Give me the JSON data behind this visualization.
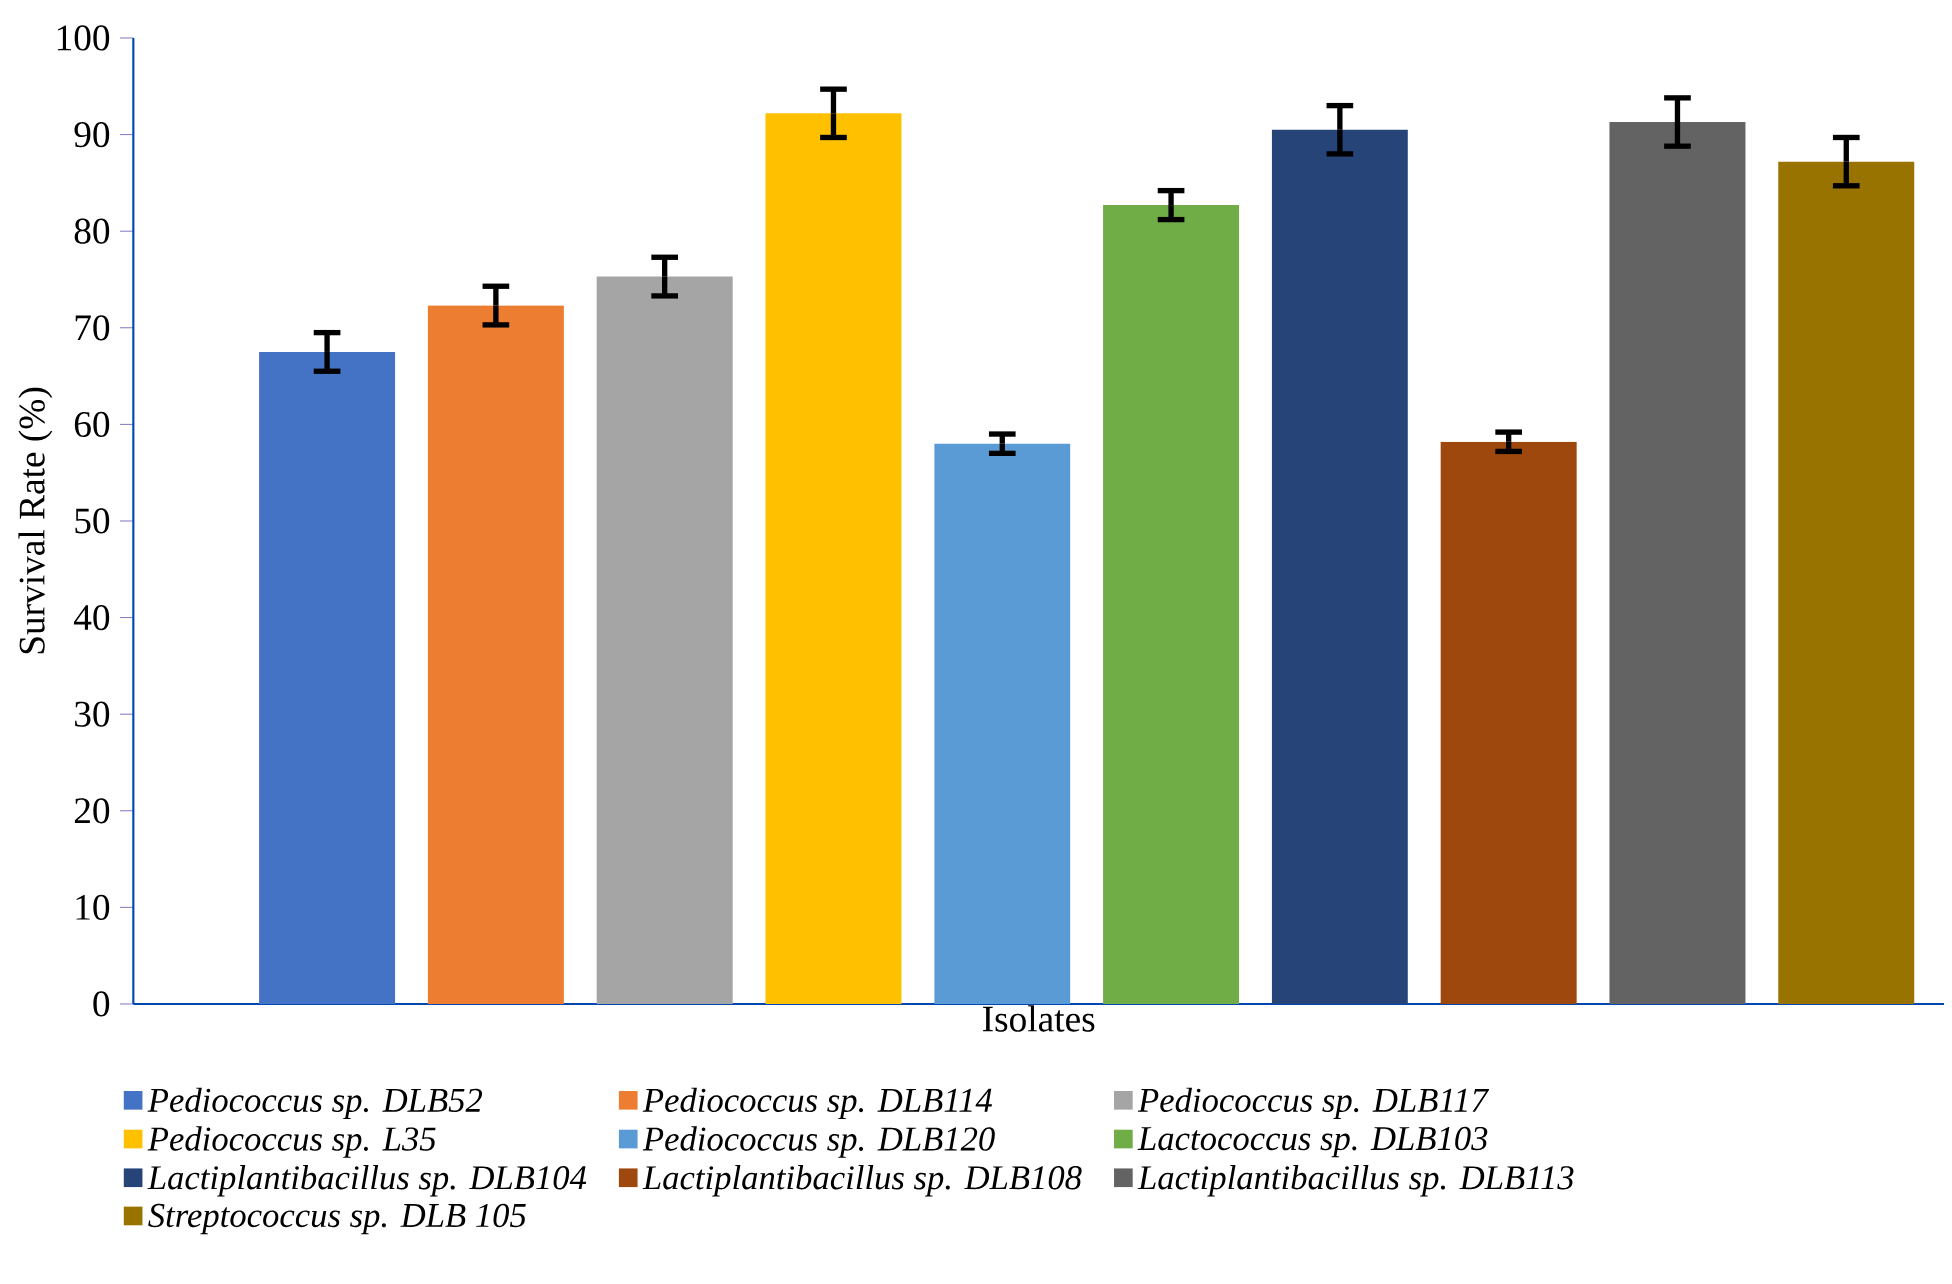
{
  "chart_data": {
    "type": "bar",
    "xlabel": "Isolates",
    "ylabel": "Survival Rate (%)",
    "categories": [
      null
    ],
    "ylim": [
      0,
      100
    ],
    "yticks": [
      0,
      10,
      20,
      30,
      40,
      50,
      60,
      70,
      80,
      90,
      100
    ],
    "legend": "bottom",
    "series": [
      {
        "name": "Pediococcus sp. DLB52",
        "color": "#4472c4",
        "values": [
          67.5
        ],
        "errors": [
          2
        ]
      },
      {
        "name": "Pediococcus sp. DLB114",
        "color": "#ed7d31",
        "values": [
          72.3
        ],
        "errors": [
          2
        ]
      },
      {
        "name": "Pediococcus sp. DLB117",
        "color": "#a5a5a5",
        "values": [
          75.3
        ],
        "errors": [
          2
        ]
      },
      {
        "name": "Pediococcus sp. L35",
        "color": "#ffc000",
        "values": [
          92.2
        ],
        "errors": [
          2.5
        ]
      },
      {
        "name": "Pediococcus sp. DLB120",
        "color": "#5b9bd5",
        "values": [
          58
        ],
        "errors": [
          1
        ]
      },
      {
        "name": "Lactococcus sp. DLB103",
        "color": "#70ad47",
        "values": [
          82.7
        ],
        "errors": [
          1.5
        ]
      },
      {
        "name": "Lactiplantibacillus sp. DLB104",
        "color": "#264478",
        "values": [
          90.5
        ],
        "errors": [
          2.5
        ]
      },
      {
        "name": "Lactiplantibacillus sp. DLB108",
        "color": "#9e480e",
        "values": [
          58.2
        ],
        "errors": [
          1
        ]
      },
      {
        "name": "Lactiplantibacillus sp. DLB113",
        "color": "#636363",
        "values": [
          91.3
        ],
        "errors": [
          2.5
        ]
      },
      {
        "name": "Streptococcus sp. DLB 105",
        "color": "#997300",
        "values": [
          87.2
        ],
        "errors": [
          2.5
        ]
      }
    ]
  }
}
